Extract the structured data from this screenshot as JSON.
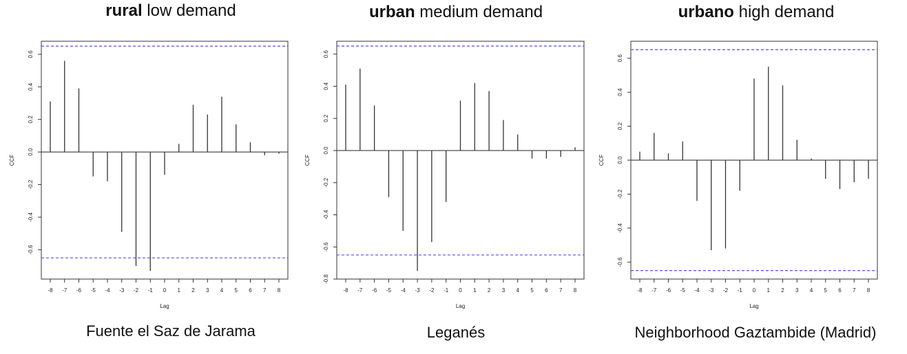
{
  "panels": [
    {
      "title_bold": "rural",
      "title_rest": " low demand",
      "caption": "Fuente el Saz de Jarama",
      "accent": "#4d4dff"
    },
    {
      "title_bold": "urban",
      "title_rest": " medium demand",
      "caption": "Leganés",
      "accent": "#4d4dff"
    },
    {
      "title_bold": "urbano",
      "title_rest": " high demand",
      "caption": "Neighborhood Gaztambide (Madrid)",
      "accent": "#4d4dff"
    }
  ],
  "chart_data": [
    {
      "type": "bar",
      "title": "rural low demand",
      "xlabel": "Lag",
      "ylabel": "CCF",
      "x": [
        -8,
        -7,
        -6,
        -5,
        -4,
        -3,
        -2,
        -1,
        0,
        1,
        2,
        3,
        4,
        5,
        6,
        7,
        8
      ],
      "values": [
        0.31,
        0.56,
        0.39,
        -0.15,
        -0.18,
        -0.49,
        -0.7,
        -0.73,
        -0.14,
        0.05,
        0.29,
        0.23,
        0.34,
        0.17,
        0.06,
        -0.02,
        -0.01
      ],
      "xticks": [
        -8,
        -7,
        -6,
        -5,
        -4,
        -3,
        -2,
        -1,
        0,
        1,
        2,
        3,
        4,
        5,
        6,
        7,
        8
      ],
      "yticks": [
        -0.6,
        -0.4,
        -0.2,
        0.0,
        0.2,
        0.4,
        0.6
      ],
      "ytick_labels": [
        "-0.6",
        "-0.4",
        "-0.2",
        "0.0",
        "0.2",
        "0.4",
        "0.6"
      ],
      "ylim": [
        -0.78,
        0.68
      ],
      "conf_bound": 0.65
    },
    {
      "type": "bar",
      "title": "urban medium demand",
      "xlabel": "Lag",
      "ylabel": "CCF",
      "x": [
        -8,
        -7,
        -6,
        -5,
        -4,
        -3,
        -2,
        -1,
        0,
        1,
        2,
        3,
        4,
        5,
        6,
        7,
        8
      ],
      "values": [
        0.41,
        0.51,
        0.28,
        -0.29,
        -0.5,
        -0.75,
        -0.57,
        -0.32,
        0.31,
        0.42,
        0.37,
        0.19,
        0.1,
        -0.05,
        -0.05,
        -0.04,
        0.02
      ],
      "xticks": [
        -8,
        -7,
        -6,
        -5,
        -4,
        -3,
        -2,
        -1,
        0,
        1,
        2,
        3,
        4,
        5,
        6,
        7,
        8
      ],
      "yticks": [
        -0.8,
        -0.6,
        -0.4,
        -0.2,
        0.0,
        0.2,
        0.4,
        0.6
      ],
      "ytick_labels": [
        "-0.8",
        "-0.6",
        "-0.4",
        "-0.2",
        "0.0",
        "0.2",
        "0.4",
        "0.6"
      ],
      "ylim": [
        -0.8,
        0.68
      ],
      "conf_bound": 0.65
    },
    {
      "type": "bar",
      "title": "urbano high demand",
      "xlabel": "Lag",
      "ylabel": "CCF",
      "x": [
        -8,
        -7,
        -6,
        -5,
        -4,
        -3,
        -2,
        -1,
        0,
        1,
        2,
        3,
        4,
        5,
        6,
        7,
        8
      ],
      "values": [
        0.05,
        0.16,
        0.04,
        0.11,
        -0.24,
        -0.53,
        -0.52,
        -0.18,
        0.48,
        0.55,
        0.44,
        0.12,
        0.01,
        -0.11,
        -0.17,
        -0.13,
        -0.11
      ],
      "xticks": [
        -8,
        -7,
        -6,
        -5,
        -4,
        -3,
        -2,
        -1,
        0,
        1,
        2,
        3,
        4,
        5,
        6,
        7,
        8
      ],
      "yticks": [
        -0.6,
        -0.4,
        -0.2,
        0.0,
        0.2,
        0.4,
        0.6
      ],
      "ytick_labels": [
        "-0.6",
        "-0.4",
        "-0.2",
        "0.0",
        "0.2",
        "0.4",
        "0.6"
      ],
      "ylim": [
        -0.7,
        0.7
      ],
      "conf_bound": 0.65
    }
  ]
}
